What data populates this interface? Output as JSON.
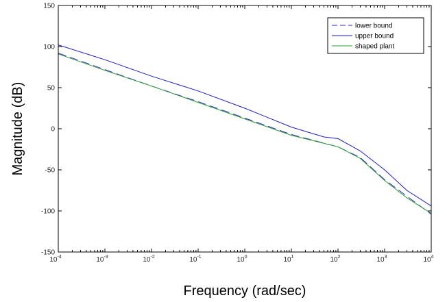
{
  "chart_data": {
    "type": "line",
    "title": "",
    "xlabel": "Frequency (rad/sec)",
    "ylabel": "Magnitude (dB)",
    "xscale": "log",
    "xlim": [
      0.0001,
      10000
    ],
    "ylim": [
      -150,
      150
    ],
    "grid": false,
    "legend_position": "top-right",
    "x_ticks": [
      0.0001,
      0.001,
      0.01,
      0.1,
      1,
      10,
      100,
      1000,
      10000
    ],
    "x_tick_labels": [
      {
        "base": "10",
        "exp": "-4"
      },
      {
        "base": "10",
        "exp": "-3"
      },
      {
        "base": "10",
        "exp": "-2"
      },
      {
        "base": "10",
        "exp": "-1"
      },
      {
        "base": "10",
        "exp": "0"
      },
      {
        "base": "10",
        "exp": "1"
      },
      {
        "base": "10",
        "exp": "2"
      },
      {
        "base": "10",
        "exp": "3"
      },
      {
        "base": "10",
        "exp": "4"
      }
    ],
    "y_ticks": [
      -150,
      -100,
      -50,
      0,
      50,
      100,
      150
    ],
    "y_tick_labels": [
      "-150",
      "-100",
      "-50",
      "0",
      "50",
      "100",
      "150"
    ],
    "series": [
      {
        "name": "lower bound",
        "color": "#2b2bd6",
        "style": "dashed",
        "x": [
          0.0001,
          0.001,
          0.01,
          0.1,
          1,
          10,
          100,
          300,
          1000,
          3000,
          10000
        ],
        "y": [
          92,
          72,
          52,
          33,
          13,
          -7,
          -22,
          -35,
          -62,
          -82,
          -104
        ]
      },
      {
        "name": "upper bound",
        "color": "#1a1acc",
        "style": "solid",
        "x": [
          0.0001,
          0.001,
          0.01,
          0.1,
          1,
          10,
          50,
          100,
          300,
          1000,
          3000,
          10000
        ],
        "y": [
          102,
          84,
          64,
          46,
          25,
          2,
          -10,
          -12,
          -27,
          -50,
          -75,
          -94
        ]
      },
      {
        "name": "shaped plant",
        "color": "#2e9e2e",
        "style": "solid",
        "x": [
          0.0001,
          0.001,
          0.01,
          0.1,
          1,
          10,
          100,
          300,
          1000,
          3000,
          10000
        ],
        "y": [
          91,
          71,
          52,
          32,
          12,
          -8,
          -22,
          -36,
          -63,
          -84,
          -103
        ]
      }
    ]
  }
}
